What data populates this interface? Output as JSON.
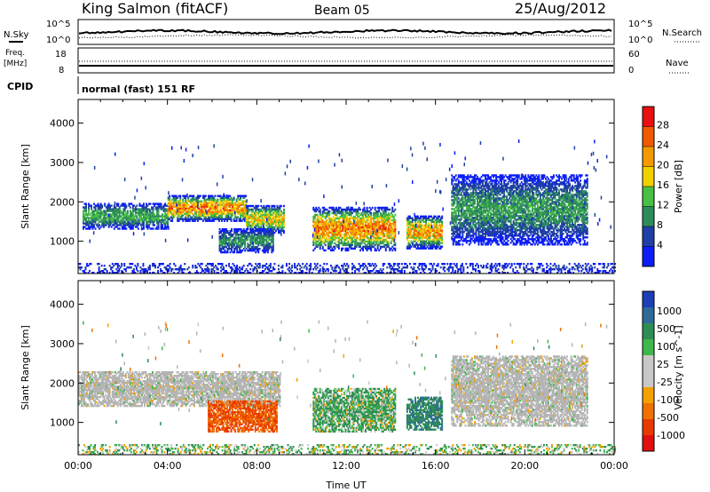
{
  "header": {
    "station": "King Salmon (fitACF)",
    "beam": "Beam 05",
    "date": "25/Aug/2012"
  },
  "status_panels": {
    "nsky_label": "N.Sky",
    "nsearch_label": "N.Search",
    "nsky_ticks": [
      "10^5",
      "10^0"
    ],
    "nsearch_ticks": [
      "10^5",
      "10^0"
    ],
    "freq_label_1": "Freq.",
    "freq_label_2": "[MHz]",
    "freq_ticks": [
      "18",
      "8"
    ],
    "nave_label": "Nave",
    "nave_ticks": [
      "60",
      "0"
    ],
    "cpid_label": "CPID",
    "cpid_value": "normal (fast) 151 RF"
  },
  "colors": {
    "power_scale": [
      "#0c1ef5",
      "#1f3fa6",
      "#2e8c5b",
      "#49c043",
      "#f2d000",
      "#f39a00",
      "#f05a00",
      "#e81010"
    ],
    "velocity_scale": [
      "#1c3fb8",
      "#2d6a9a",
      "#2e8d55",
      "#3db84a",
      "#c8c8c8",
      "#c8c8c8",
      "#f3a000",
      "#f07000",
      "#e83a00",
      "#e01010"
    ],
    "ground_scatter": "#b4b4b4"
  },
  "chart_data": [
    {
      "type": "heatmap",
      "name": "power",
      "x": "time",
      "xlim": [
        "00:00",
        "24:00"
      ],
      "ylabel": "Slant Range [km]",
      "ylim": [
        180,
        4600
      ],
      "yticks": [
        "4000",
        "3000",
        "2000",
        "1000"
      ],
      "colorbar_label": "Power [dB]",
      "colorbar_ticks": [
        "28",
        "24",
        "20",
        "16",
        "12",
        "8",
        "4"
      ],
      "colorbar_range": [
        0,
        32
      ],
      "echo_regions": [
        {
          "t_start": 0.2,
          "t_end": 4.0,
          "r_min": 1300,
          "r_max": 1950,
          "peak_db": 16
        },
        {
          "t_start": 4.0,
          "t_end": 7.5,
          "r_min": 1500,
          "r_max": 2150,
          "peak_db": 30
        },
        {
          "t_start": 7.5,
          "t_end": 9.2,
          "r_min": 1200,
          "r_max": 1900,
          "peak_db": 24
        },
        {
          "t_start": 6.3,
          "t_end": 8.7,
          "r_min": 700,
          "r_max": 1300,
          "peak_db": 14
        },
        {
          "t_start": 10.5,
          "t_end": 14.2,
          "r_min": 750,
          "r_max": 1850,
          "peak_db": 30
        },
        {
          "t_start": 14.7,
          "t_end": 16.3,
          "r_min": 800,
          "r_max": 1650,
          "peak_db": 28
        },
        {
          "t_start": 16.7,
          "t_end": 22.8,
          "r_min": 900,
          "r_max": 2700,
          "peak_db": 14
        },
        {
          "t_start": 0.0,
          "t_end": 24.0,
          "r_min": 180,
          "r_max": 450,
          "peak_db": 6
        }
      ]
    },
    {
      "type": "heatmap",
      "name": "velocity",
      "x": "time",
      "xlim": [
        "00:00",
        "24:00"
      ],
      "xlabel": "Time UT",
      "xticks": [
        "00:00",
        "04:00",
        "08:00",
        "12:00",
        "16:00",
        "20:00",
        "00:00"
      ],
      "ylabel": "Slant Range [km]",
      "ylim": [
        180,
        4600
      ],
      "yticks": [
        "4000",
        "3000",
        "2000",
        "1000"
      ],
      "colorbar_label": "Velocity [m s^-1]",
      "colorbar_ticks": [
        "1000",
        "500",
        "100",
        "25",
        "-25",
        "-100",
        "-500",
        "-1000"
      ],
      "echo_regions": [
        {
          "t_start": 0.0,
          "t_end": 9.0,
          "r_min": 1400,
          "r_max": 2300,
          "velocity": 0,
          "ground_scatter": true
        },
        {
          "t_start": 5.8,
          "t_end": 8.9,
          "r_min": 750,
          "r_max": 1550,
          "velocity": -500
        },
        {
          "t_start": 10.5,
          "t_end": 14.2,
          "r_min": 750,
          "r_max": 1850,
          "velocity": 100
        },
        {
          "t_start": 14.7,
          "t_end": 16.3,
          "r_min": 800,
          "r_max": 1650,
          "velocity": 400
        },
        {
          "t_start": 16.7,
          "t_end": 22.8,
          "r_min": 900,
          "r_max": 2700,
          "velocity": 0,
          "ground_scatter": true
        },
        {
          "t_start": 0.0,
          "t_end": 24.0,
          "r_min": 180,
          "r_max": 450,
          "velocity": 50
        }
      ]
    }
  ]
}
